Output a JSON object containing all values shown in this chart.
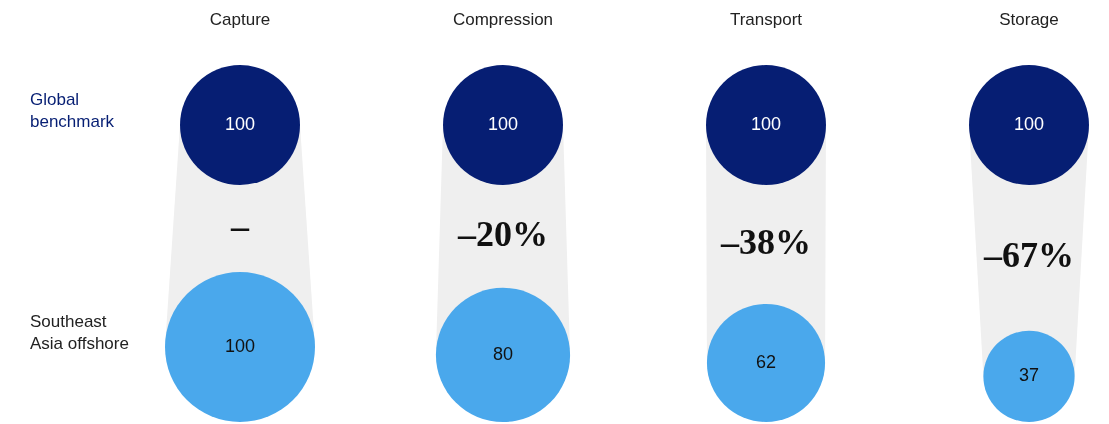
{
  "chart_data": {
    "type": "other",
    "categories": [
      "Capture",
      "Compression",
      "Transport",
      "Storage"
    ],
    "series": [
      {
        "name": "Global benchmark",
        "color": "#061e73",
        "values": [
          100,
          100,
          100,
          100
        ]
      },
      {
        "name": "Southeast Asia offshore",
        "color": "#4aa8ec",
        "values": [
          100,
          80,
          62,
          37
        ]
      }
    ],
    "data_labels": true,
    "annotations": [
      {
        "text": "–",
        "x": "Capture"
      },
      {
        "text": "–20%",
        "x": "Compression"
      },
      {
        "text": "–38%",
        "x": "Transport"
      },
      {
        "text": "–67%",
        "x": "Storage"
      }
    ]
  }
}
